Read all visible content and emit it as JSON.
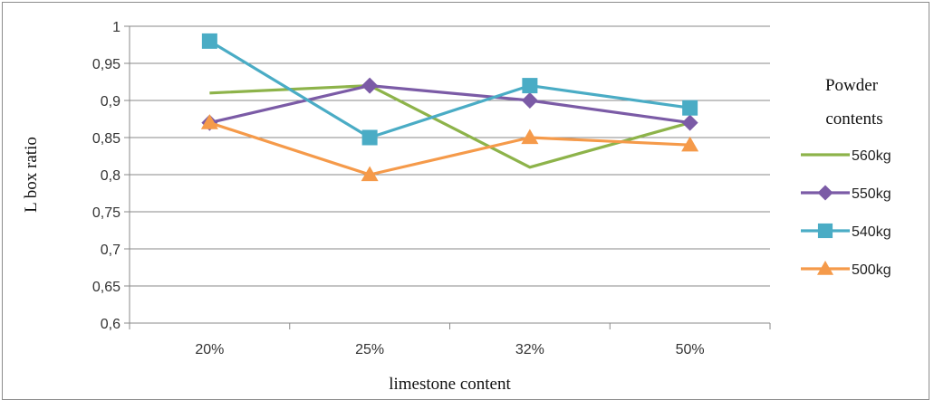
{
  "chart_data": {
    "type": "line",
    "xlabel": "limestone content",
    "ylabel": "L box ratio",
    "categories": [
      "20%",
      "25%",
      "32%",
      "50%"
    ],
    "ylim": [
      0.6,
      1.0
    ],
    "yticks": [
      "0,6",
      "0,65",
      "0,7",
      "0,75",
      "0,8",
      "0,85",
      "0,9",
      "0,95",
      "1"
    ],
    "ytick_values": [
      0.6,
      0.65,
      0.7,
      0.75,
      0.8,
      0.85,
      0.9,
      0.95,
      1.0
    ],
    "grid": "horizontal",
    "legend_title_lines": [
      "Powder",
      "contents"
    ],
    "legend_position": "right",
    "series": [
      {
        "name": "560kg",
        "values": [
          0.91,
          0.92,
          0.81,
          0.87
        ],
        "color": "#8db34a",
        "marker": "none"
      },
      {
        "name": "550kg",
        "values": [
          0.87,
          0.92,
          0.9,
          0.87
        ],
        "color": "#7b5ba6",
        "marker": "diamond"
      },
      {
        "name": "540kg",
        "values": [
          0.98,
          0.85,
          0.92,
          0.89
        ],
        "color": "#4aacc5",
        "marker": "square"
      },
      {
        "name": "500kg",
        "values": [
          0.87,
          0.8,
          0.85,
          0.84
        ],
        "color": "#f59a4a",
        "marker": "triangle"
      }
    ]
  }
}
